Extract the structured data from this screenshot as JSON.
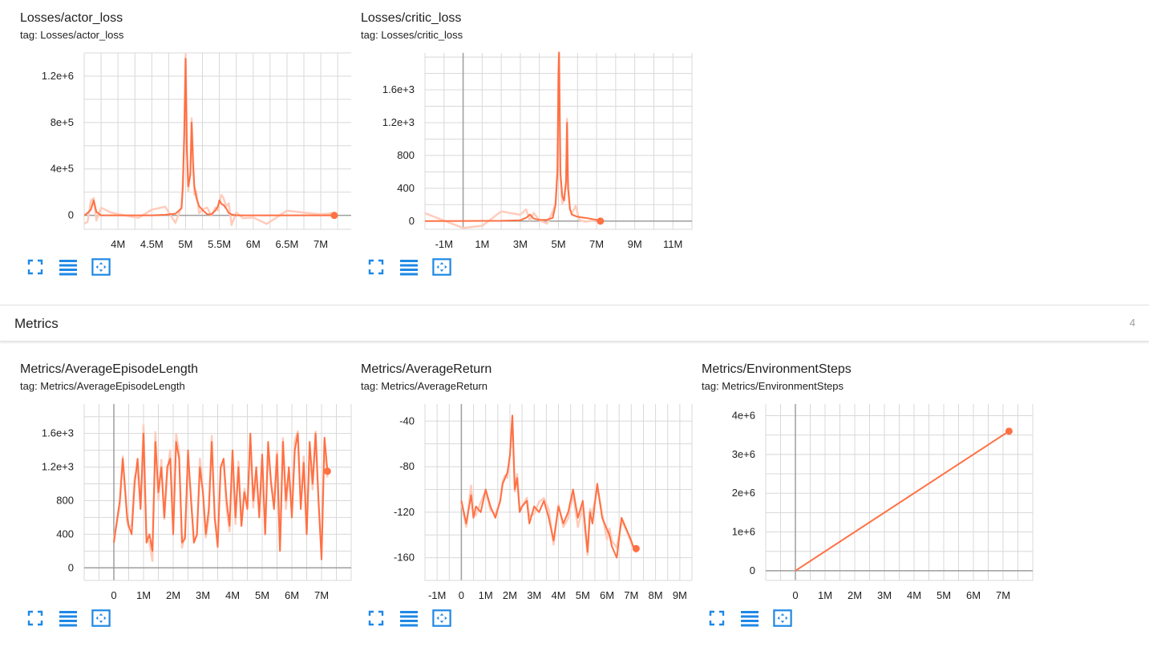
{
  "colors": {
    "line": "#ff7043",
    "halo": "#ffccbc",
    "grid": "#d8d8d8",
    "axis": "#9e9e9e",
    "icon": "#1e88e5"
  },
  "icons": [
    "fullscreen-icon",
    "toggle-log-scale-icon",
    "fit-domain-icon"
  ],
  "section": {
    "title": "Metrics",
    "count": "4"
  },
  "charts": [
    {
      "id": "actor",
      "title": "Losses/actor_loss",
      "tag": "tag: Losses/actor_loss",
      "yticks": [
        {
          "v": 0,
          "label": "0"
        },
        {
          "v": 400000,
          "label": "4e+5"
        },
        {
          "v": 800000,
          "label": "8e+5"
        },
        {
          "v": 1200000,
          "label": "1.2e+6"
        }
      ],
      "xticks": [
        {
          "v": 4000000,
          "label": "4M"
        },
        {
          "v": 4500000,
          "label": "4.5M"
        },
        {
          "v": 5000000,
          "label": "5M"
        },
        {
          "v": 5500000,
          "label": "5.5M"
        },
        {
          "v": 6000000,
          "label": "6M"
        },
        {
          "v": 6500000,
          "label": "6.5M"
        },
        {
          "v": 7000000,
          "label": "7M"
        }
      ]
    },
    {
      "id": "critic",
      "title": "Losses/critic_loss",
      "tag": "tag: Losses/critic_loss",
      "yticks": [
        {
          "v": 0,
          "label": "0"
        },
        {
          "v": 400,
          "label": "400"
        },
        {
          "v": 800,
          "label": "800"
        },
        {
          "v": 1200,
          "label": "1.2e+3"
        },
        {
          "v": 1600,
          "label": "1.6e+3"
        }
      ],
      "xticks": [
        {
          "v": -1000000,
          "label": "-1M"
        },
        {
          "v": 1000000,
          "label": "1M"
        },
        {
          "v": 3000000,
          "label": "3M"
        },
        {
          "v": 5000000,
          "label": "5M"
        },
        {
          "v": 7000000,
          "label": "7M"
        },
        {
          "v": 9000000,
          "label": "9M"
        },
        {
          "v": 11000000,
          "label": "11M"
        }
      ]
    },
    {
      "id": "eplen",
      "title": "Metrics/AverageEpisodeLength",
      "tag": "tag: Metrics/AverageEpisodeLength",
      "yticks": [
        {
          "v": 0,
          "label": "0"
        },
        {
          "v": 400,
          "label": "400"
        },
        {
          "v": 800,
          "label": "800"
        },
        {
          "v": 1200,
          "label": "1.2e+3"
        },
        {
          "v": 1600,
          "label": "1.6e+3"
        }
      ],
      "xticks": [
        {
          "v": 0,
          "label": "0"
        },
        {
          "v": 1000000,
          "label": "1M"
        },
        {
          "v": 2000000,
          "label": "2M"
        },
        {
          "v": 3000000,
          "label": "3M"
        },
        {
          "v": 4000000,
          "label": "4M"
        },
        {
          "v": 5000000,
          "label": "5M"
        },
        {
          "v": 6000000,
          "label": "6M"
        },
        {
          "v": 7000000,
          "label": "7M"
        }
      ]
    },
    {
      "id": "ret",
      "title": "Metrics/AverageReturn",
      "tag": "tag: Metrics/AverageReturn",
      "yticks": [
        {
          "v": -160,
          "label": "-160"
        },
        {
          "v": -120,
          "label": "-120"
        },
        {
          "v": -80,
          "label": "-80"
        },
        {
          "v": -40,
          "label": "-40"
        }
      ],
      "xticks": [
        {
          "v": -1000000,
          "label": "-1M"
        },
        {
          "v": 0,
          "label": "0"
        },
        {
          "v": 1000000,
          "label": "1M"
        },
        {
          "v": 2000000,
          "label": "2M"
        },
        {
          "v": 3000000,
          "label": "3M"
        },
        {
          "v": 4000000,
          "label": "4M"
        },
        {
          "v": 5000000,
          "label": "5M"
        },
        {
          "v": 6000000,
          "label": "6M"
        },
        {
          "v": 7000000,
          "label": "7M"
        },
        {
          "v": 8000000,
          "label": "8M"
        },
        {
          "v": 9000000,
          "label": "9M"
        }
      ]
    },
    {
      "id": "envsteps",
      "title": "Metrics/EnvironmentSteps",
      "tag": "tag: Metrics/EnvironmentSteps",
      "yticks": [
        {
          "v": 0,
          "label": "0"
        },
        {
          "v": 1000000,
          "label": "1e+6"
        },
        {
          "v": 2000000,
          "label": "2e+6"
        },
        {
          "v": 3000000,
          "label": "3e+6"
        },
        {
          "v": 4000000,
          "label": "4e+6"
        }
      ],
      "xticks": [
        {
          "v": 0,
          "label": "0"
        },
        {
          "v": 1000000,
          "label": "1M"
        },
        {
          "v": 2000000,
          "label": "2M"
        },
        {
          "v": 3000000,
          "label": "3M"
        },
        {
          "v": 4000000,
          "label": "4M"
        },
        {
          "v": 5000000,
          "label": "5M"
        },
        {
          "v": 6000000,
          "label": "6M"
        },
        {
          "v": 7000000,
          "label": "7M"
        }
      ]
    }
  ],
  "chart_data": [
    {
      "type": "line",
      "title": "Losses/actor_loss",
      "xlim": [
        3500000,
        7450000
      ],
      "ylim": [
        -120000,
        1400000
      ],
      "grid": true,
      "series": [
        {
          "x": [
            3500000,
            3550000,
            3600000,
            3640000,
            3680000,
            3750000,
            3900000,
            4100000,
            4300000,
            4500000,
            4700000,
            4850000,
            4940000,
            4960000,
            4980000,
            5000000,
            5020000,
            5040000,
            5070000,
            5090000,
            5110000,
            5130000,
            5160000,
            5200000,
            5260000,
            5320000,
            5380000,
            5440000,
            5480000,
            5500000,
            5530000,
            5560000,
            5600000,
            5640000,
            5680000,
            5750000,
            5850000,
            6000000,
            6200000,
            6500000,
            6800000,
            7000000,
            7200000
          ],
          "y": [
            0,
            20000,
            50000,
            130000,
            30000,
            0,
            0,
            0,
            0,
            0,
            5000,
            15000,
            60000,
            250000,
            700000,
            1350000,
            550000,
            250000,
            350000,
            800000,
            450000,
            250000,
            150000,
            80000,
            40000,
            10000,
            8000,
            40000,
            80000,
            130000,
            100000,
            90000,
            60000,
            20000,
            8000,
            0,
            0,
            0,
            0,
            0,
            0,
            0,
            0
          ]
        }
      ]
    },
    {
      "type": "line",
      "title": "Losses/critic_loss",
      "xlim": [
        -2000000,
        12000000
      ],
      "ylim": [
        -100,
        2050
      ],
      "grid": true,
      "series": [
        {
          "x": [
            -2000000,
            0,
            1000000,
            2000000,
            3000000,
            3300000,
            3500000,
            3700000,
            4000000,
            4400000,
            4700000,
            4850000,
            4950000,
            5000000,
            5030000,
            5100000,
            5200000,
            5300000,
            5400000,
            5450000,
            5500000,
            5600000,
            5700000,
            5900000,
            6100000,
            6400000,
            7000000,
            7200000
          ],
          "y": [
            0,
            2,
            3,
            4,
            10,
            40,
            80,
            30,
            15,
            15,
            40,
            200,
            600,
            1800,
            2050,
            600,
            300,
            250,
            500,
            1200,
            400,
            150,
            80,
            60,
            50,
            40,
            15,
            0
          ]
        }
      ]
    },
    {
      "type": "line",
      "title": "Metrics/AverageEpisodeLength",
      "xlim": [
        -1000000,
        8000000
      ],
      "ylim": [
        -150,
        1950
      ],
      "grid": true,
      "series": [
        {
          "x": [
            0,
            200000,
            300000,
            450000,
            500000,
            600000,
            700000,
            800000,
            900000,
            1000000,
            1100000,
            1200000,
            1300000,
            1400000,
            1500000,
            1600000,
            1700000,
            1800000,
            1900000,
            2000000,
            2100000,
            2200000,
            2300000,
            2400000,
            2500000,
            2600000,
            2700000,
            2800000,
            2900000,
            3000000,
            3100000,
            3200000,
            3300000,
            3400000,
            3500000,
            3600000,
            3700000,
            3800000,
            3900000,
            4000000,
            4100000,
            4200000,
            4300000,
            4400000,
            4500000,
            4600000,
            4700000,
            4800000,
            4900000,
            5000000,
            5100000,
            5200000,
            5300000,
            5400000,
            5500000,
            5600000,
            5700000,
            5800000,
            5900000,
            6000000,
            6100000,
            6200000,
            6300000,
            6400000,
            6500000,
            6600000,
            6700000,
            6800000,
            6900000,
            7000000,
            7100000,
            7200000
          ],
          "y": [
            300,
            800,
            1300,
            600,
            500,
            400,
            1000,
            1300,
            700,
            1600,
            300,
            400,
            200,
            1500,
            900,
            1200,
            600,
            1200,
            1300,
            400,
            1500,
            1300,
            300,
            350,
            1400,
            800,
            300,
            400,
            1200,
            900,
            400,
            700,
            1500,
            600,
            250,
            1200,
            1300,
            800,
            500,
            1400,
            600,
            1200,
            500,
            900,
            700,
            1600,
            800,
            1200,
            600,
            1350,
            400,
            1500,
            1000,
            700,
            1350,
            200,
            1500,
            800,
            1200,
            600,
            1400,
            1600,
            700,
            1250,
            400,
            1500,
            1000,
            1600,
            800,
            100,
            1550,
            1150
          ]
        }
      ]
    },
    {
      "type": "line",
      "title": "Metrics/AverageReturn",
      "xlim": [
        -1500000,
        9500000
      ],
      "ylim": [
        -180,
        -25
      ],
      "grid": true,
      "series": [
        {
          "x": [
            0,
            200000,
            400000,
            500000,
            600000,
            800000,
            1000000,
            1200000,
            1400000,
            1600000,
            1700000,
            1800000,
            1900000,
            2000000,
            2100000,
            2200000,
            2300000,
            2400000,
            2500000,
            2700000,
            2800000,
            3000000,
            3200000,
            3400000,
            3600000,
            3800000,
            4000000,
            4200000,
            4400000,
            4600000,
            4800000,
            5000000,
            5200000,
            5300000,
            5400000,
            5600000,
            5800000,
            6000000,
            6100000,
            6200000,
            6400000,
            6600000,
            6800000,
            7000000,
            7100000,
            7200000
          ],
          "y": [
            -110,
            -130,
            -105,
            -125,
            -115,
            -120,
            -100,
            -115,
            -125,
            -110,
            -95,
            -90,
            -85,
            -70,
            -35,
            -100,
            -90,
            -120,
            -115,
            -110,
            -130,
            -115,
            -120,
            -110,
            -125,
            -145,
            -115,
            -130,
            -120,
            -100,
            -125,
            -110,
            -155,
            -120,
            -130,
            -95,
            -125,
            -135,
            -140,
            -150,
            -160,
            -125,
            -135,
            -145,
            -152,
            -152
          ]
        }
      ]
    },
    {
      "type": "line",
      "title": "Metrics/EnvironmentSteps",
      "xlim": [
        -1000000,
        8000000
      ],
      "ylim": [
        -250000,
        4300000
      ],
      "grid": true,
      "series": [
        {
          "x": [
            0,
            7200000
          ],
          "y": [
            0,
            3600000
          ]
        }
      ]
    }
  ]
}
